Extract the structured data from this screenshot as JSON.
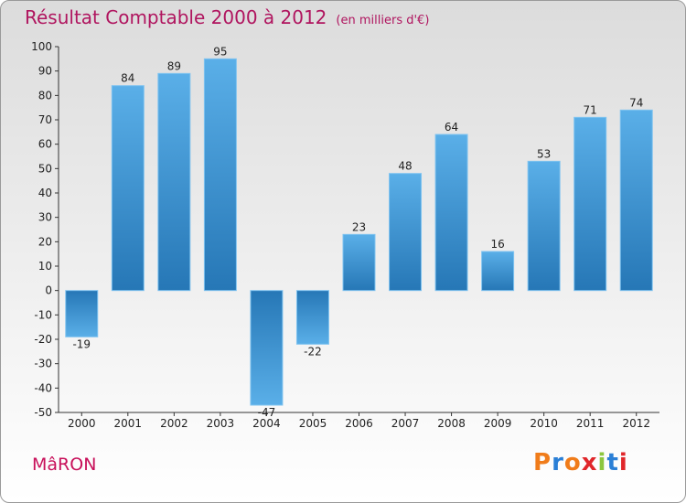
{
  "header": {
    "title": "Résultat Comptable 2000 à 2012",
    "subtitle": "(en milliers d'€)"
  },
  "footer": {
    "commune": "MâRON",
    "logo": "Proxiti"
  },
  "colors": {
    "title": "#b0155f",
    "bar_dark": "#2677b6",
    "bar_light": "#5aafe8",
    "logo_letters": [
      "#f07c1a",
      "#2a7fd6",
      "#f07c1a",
      "#e0262a",
      "#8cc63e",
      "#2a7fd6",
      "#e0262a"
    ]
  },
  "chart_data": {
    "type": "bar",
    "title": "Résultat Comptable 2000 à 2012",
    "subtitle": "(en milliers d'€)",
    "categories": [
      "2000",
      "2001",
      "2002",
      "2003",
      "2004",
      "2005",
      "2006",
      "2007",
      "2008",
      "2009",
      "2010",
      "2011",
      "2012"
    ],
    "values": [
      -19,
      84,
      89,
      95,
      -47,
      -22,
      23,
      48,
      64,
      16,
      53,
      71,
      74
    ],
    "ylim": [
      -50,
      100
    ],
    "yticks": [
      -50,
      -40,
      -30,
      -20,
      -10,
      0,
      10,
      20,
      30,
      40,
      50,
      60,
      70,
      80,
      90,
      100
    ],
    "grid": false,
    "legend": "none"
  }
}
